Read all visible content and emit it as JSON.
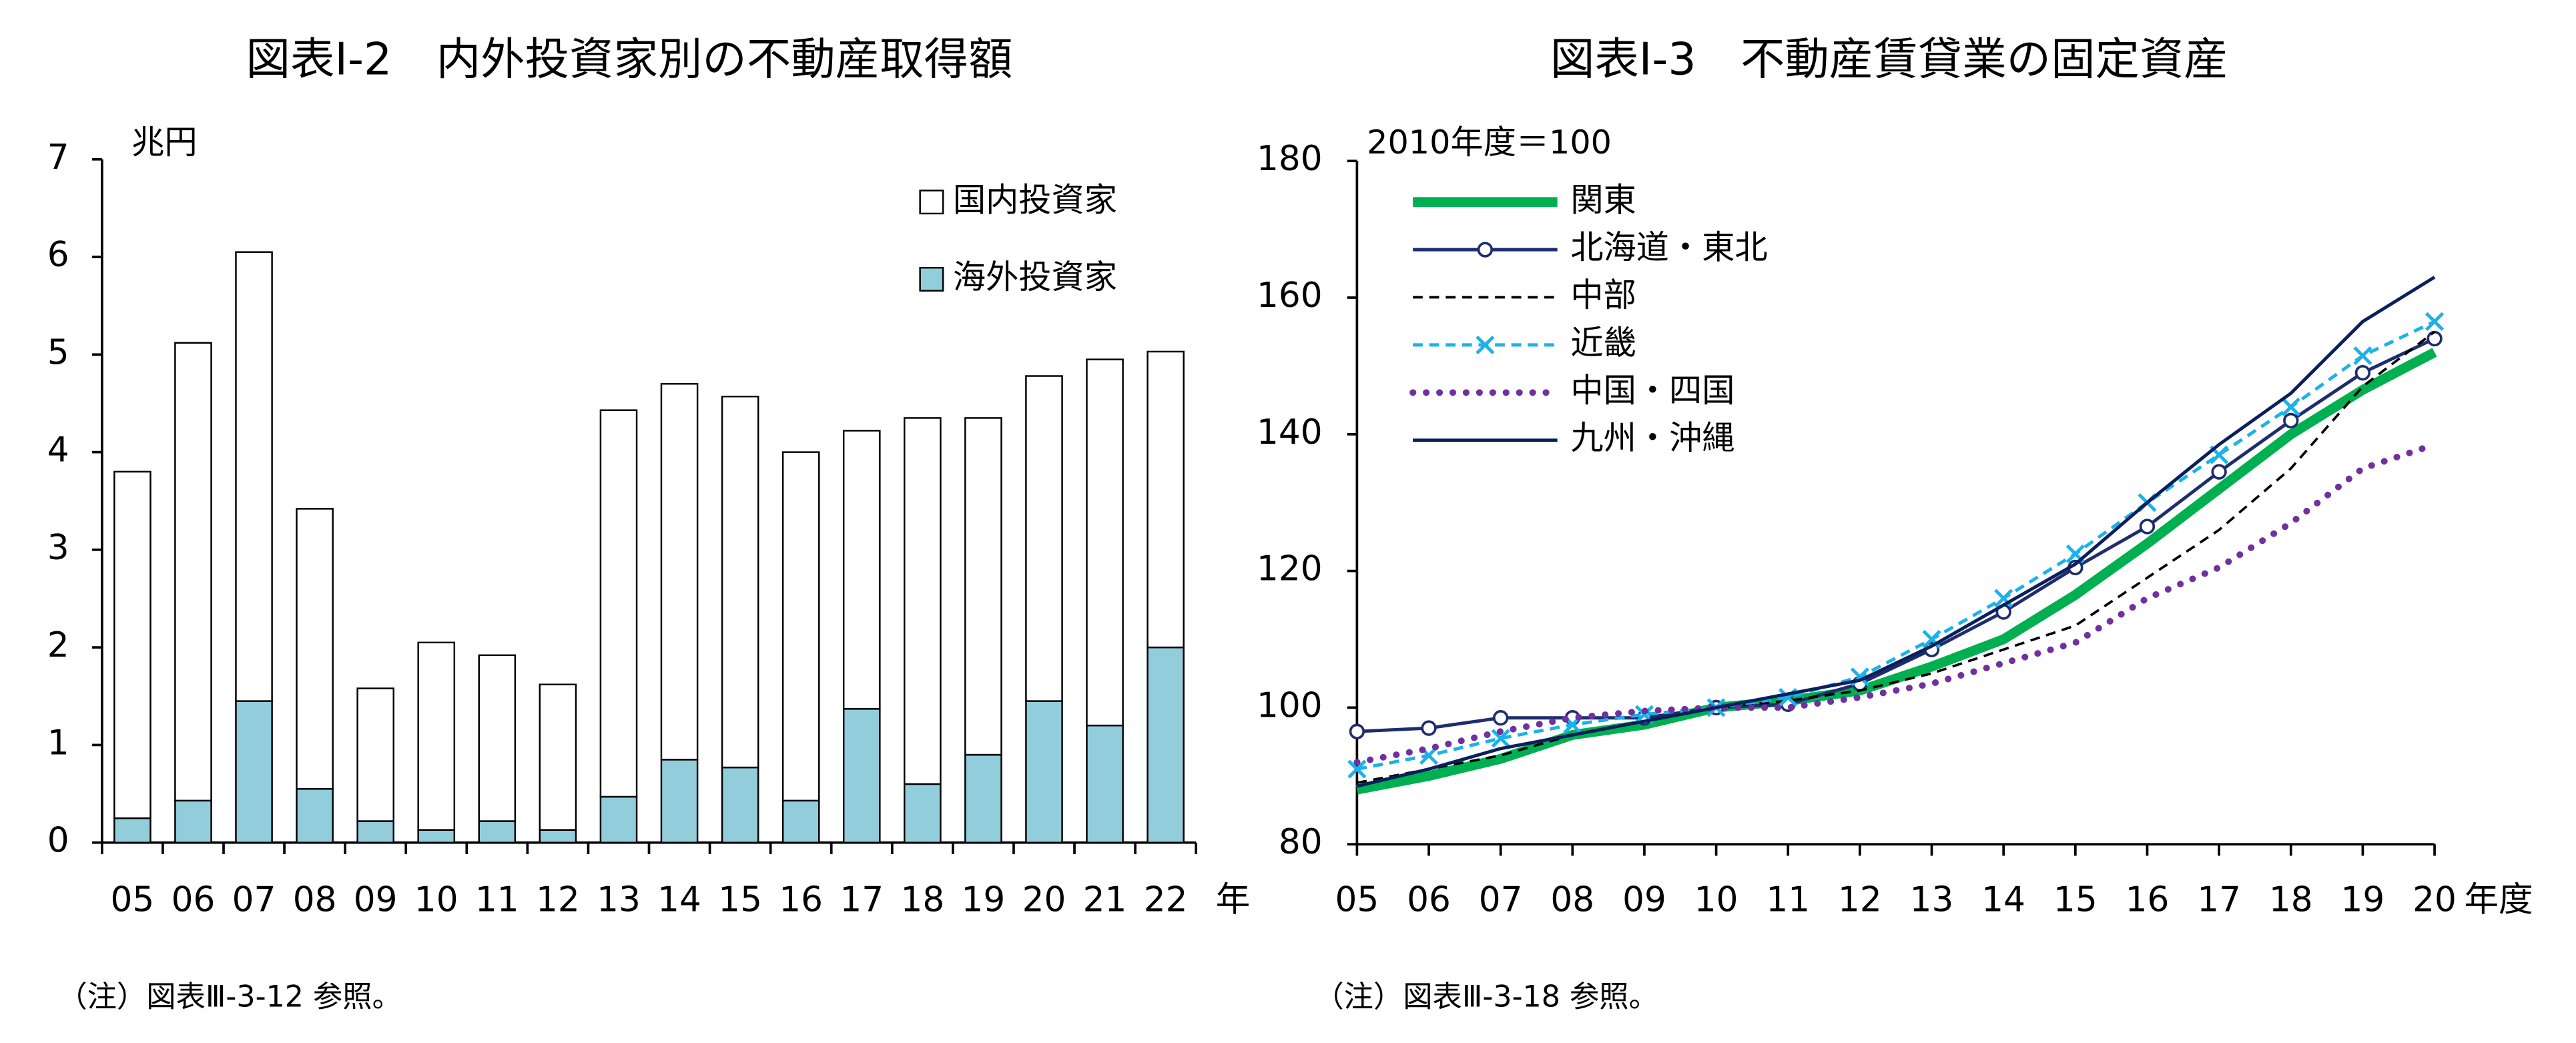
{
  "chart_data": [
    {
      "type": "bar",
      "stacked": true,
      "title": "図表Ⅰ-2　内外投資家別の不動産取得額",
      "ylabel": "兆円",
      "xlabel": "年",
      "note": "（注）図表Ⅲ-3-12 参照。",
      "categories": [
        "05",
        "06",
        "07",
        "08",
        "09",
        "10",
        "11",
        "12",
        "13",
        "14",
        "15",
        "16",
        "17",
        "18",
        "19",
        "20",
        "21",
        "22"
      ],
      "series": [
        {
          "name": "国内投資家",
          "color": "#ffffff",
          "values": [
            3.55,
            4.69,
            4.6,
            2.87,
            1.36,
            1.92,
            1.7,
            1.49,
            3.96,
            3.85,
            3.8,
            3.57,
            2.85,
            3.75,
            3.45,
            3.33,
            3.75,
            3.03
          ]
        },
        {
          "name": "海外投資家",
          "color": "#92cddc",
          "values": [
            0.25,
            0.43,
            1.45,
            0.55,
            0.22,
            0.13,
            0.22,
            0.13,
            0.47,
            0.85,
            0.77,
            0.43,
            1.37,
            0.6,
            0.9,
            1.45,
            1.2,
            2.0
          ]
        }
      ],
      "ylim": [
        0,
        7
      ],
      "yticks": [
        0,
        1,
        2,
        3,
        4,
        5,
        6,
        7
      ],
      "grid": false,
      "legend": "upper right"
    },
    {
      "type": "line",
      "title": "図表Ⅰ-3　不動産賃貸業の固定資産",
      "ylabel": "2010年度＝100",
      "xlabel": "年度",
      "note": "（注）図表Ⅲ-3-18 参照。",
      "categories": [
        "05",
        "06",
        "07",
        "08",
        "09",
        "10",
        "11",
        "12",
        "13",
        "14",
        "15",
        "16",
        "17",
        "18",
        "19",
        "20"
      ],
      "series": [
        {
          "name": "関東",
          "color": "#00b050",
          "style": "solid",
          "linewidth": 6,
          "values": [
            88,
            90,
            92.5,
            96,
            97.5,
            100,
            101,
            102.5,
            106,
            110,
            116.5,
            124,
            132,
            140,
            146.5,
            152
          ]
        },
        {
          "name": "北海道・東北",
          "color": "#1f2d6e",
          "style": "solid",
          "linewidth": 2,
          "marker": "circle",
          "values": [
            96.5,
            97,
            98.5,
            98.5,
            98.5,
            100,
            100.5,
            103.5,
            108.5,
            114,
            120.5,
            126.5,
            134.5,
            142,
            149,
            154
          ]
        },
        {
          "name": "中部",
          "color": "#000000",
          "style": "dashed",
          "linewidth": 1.5,
          "values": [
            89,
            91,
            93,
            96,
            98,
            100,
            101,
            102.5,
            105,
            108.5,
            112,
            119,
            126,
            135,
            147,
            155
          ]
        },
        {
          "name": "近畿",
          "color": "#1ab2e8",
          "style": "dashed",
          "linewidth": 2,
          "marker": "x",
          "values": [
            91,
            93,
            95.5,
            97.5,
            99,
            100,
            101.5,
            104.5,
            110,
            116,
            122.5,
            130,
            137,
            144,
            151.5,
            156.5
          ]
        },
        {
          "name": "中国・四国",
          "color": "#7030a0",
          "style": "dotted",
          "linewidth": 4,
          "values": [
            92,
            94,
            96.5,
            98.5,
            99.5,
            100,
            100,
            101.5,
            103.5,
            106.5,
            109.5,
            116,
            120.5,
            127,
            135,
            138.5
          ]
        },
        {
          "name": "九州・沖縄",
          "color": "#0b1f5c",
          "style": "solid",
          "linewidth": 2,
          "values": [
            88.5,
            91,
            94,
            96,
            98,
            100,
            102,
            104,
            109,
            115,
            121,
            130,
            138.5,
            146,
            156.5,
            163
          ]
        }
      ],
      "ylim": [
        80,
        180
      ],
      "yticks": [
        80,
        100,
        120,
        140,
        160,
        180
      ],
      "grid": false,
      "legend": "upper left"
    }
  ]
}
